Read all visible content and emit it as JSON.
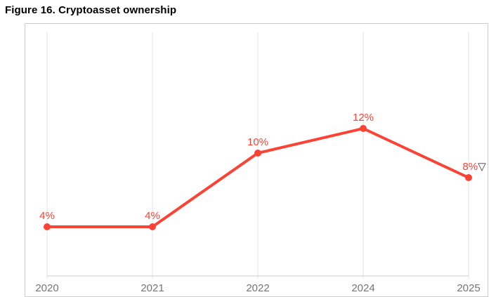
{
  "figure_title": "Figure 16. Cryptoasset ownership",
  "chart_data": {
    "type": "line",
    "title": "Figure 16. Cryptoasset ownership",
    "categories": [
      "2020",
      "2021",
      "2022",
      "2024",
      "2025"
    ],
    "values": [
      4,
      4,
      10,
      12,
      8
    ],
    "point_labels": [
      "4%",
      "4%",
      "10%",
      "12%",
      "8%"
    ],
    "last_point_annotation": "▽",
    "series_name": "Cryptoasset ownership",
    "xlabel": "",
    "ylabel": "",
    "unit": "%",
    "ylim": [
      0,
      20
    ],
    "grid": "vertical-only",
    "legend": "none",
    "colors": {
      "line": "#fa4334",
      "point_label": "#fa4334",
      "annotation": "#3d3d3d",
      "axis_label": "#757575",
      "gridline": "#e3e3e3",
      "axis_line": "#cccccc",
      "container_border": "#cccccc",
      "title": "#000000",
      "background": "#ffffff"
    }
  }
}
